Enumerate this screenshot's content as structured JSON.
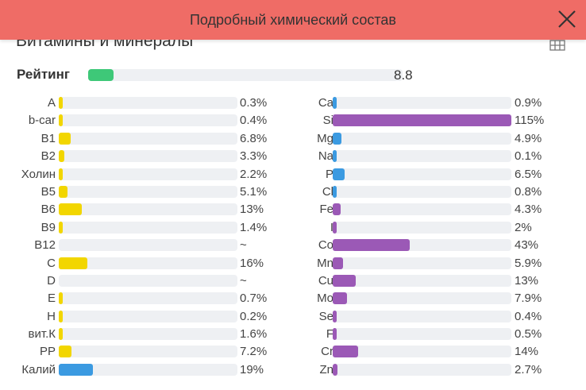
{
  "header": {
    "title": "Подробный химический состав"
  },
  "section": {
    "title": "Витамины и минералы"
  },
  "icons": {
    "close": "close-icon",
    "table_view": "grid-icon"
  },
  "colors": {
    "header": "#ef6c66",
    "rating": "#3ec878",
    "vitamin": "#f2d600",
    "potassium": "#3b9ae1",
    "mineral_blue": "#3b9ae1",
    "mineral_purple": "#9b59b6",
    "track": "#eef0f3"
  },
  "rating": {
    "label": "Рейтинг",
    "value": "8.8",
    "fraction": 0.08
  },
  "vitamins": [
    {
      "label": "A",
      "value": "0.3%",
      "fraction": 0.003,
      "color": "#f2d600"
    },
    {
      "label": "b-car",
      "value": "0.4%",
      "fraction": 0.004,
      "color": "#f2d600"
    },
    {
      "label": "B1",
      "value": "6.8%",
      "fraction": 0.068,
      "color": "#f2d600"
    },
    {
      "label": "B2",
      "value": "3.3%",
      "fraction": 0.033,
      "color": "#f2d600"
    },
    {
      "label": "Холин",
      "value": "2.2%",
      "fraction": 0.022,
      "color": "#f2d600"
    },
    {
      "label": "B5",
      "value": "5.1%",
      "fraction": 0.051,
      "color": "#f2d600"
    },
    {
      "label": "B6",
      "value": "13%",
      "fraction": 0.13,
      "color": "#f2d600"
    },
    {
      "label": "B9",
      "value": "1.4%",
      "fraction": 0.014,
      "color": "#f2d600"
    },
    {
      "label": "B12",
      "value": "~",
      "fraction": 0,
      "color": "#f2d600"
    },
    {
      "label": "C",
      "value": "16%",
      "fraction": 0.16,
      "color": "#f2d600"
    },
    {
      "label": "D",
      "value": "~",
      "fraction": 0,
      "color": "#f2d600"
    },
    {
      "label": "E",
      "value": "0.7%",
      "fraction": 0.007,
      "color": "#f2d600"
    },
    {
      "label": "H",
      "value": "0.2%",
      "fraction": 0.002,
      "color": "#f2d600"
    },
    {
      "label": "вит.К",
      "value": "1.6%",
      "fraction": 0.016,
      "color": "#f2d600"
    },
    {
      "label": "PP",
      "value": "7.2%",
      "fraction": 0.072,
      "color": "#f2d600"
    },
    {
      "label": "Калий",
      "value": "19%",
      "fraction": 0.19,
      "color": "#3b9ae1"
    }
  ],
  "minerals": [
    {
      "label": "Ca",
      "value": "0.9%",
      "fraction": 0.009,
      "color": "#3b9ae1"
    },
    {
      "label": "Si",
      "value": "115%",
      "fraction": 1.0,
      "color": "#9b59b6"
    },
    {
      "label": "Mg",
      "value": "4.9%",
      "fraction": 0.049,
      "color": "#3b9ae1"
    },
    {
      "label": "Na",
      "value": "0.1%",
      "fraction": 0.001,
      "color": "#3b9ae1"
    },
    {
      "label": "P",
      "value": "6.5%",
      "fraction": 0.065,
      "color": "#3b9ae1"
    },
    {
      "label": "Cl",
      "value": "0.8%",
      "fraction": 0.008,
      "color": "#3b9ae1"
    },
    {
      "label": "Fe",
      "value": "4.3%",
      "fraction": 0.043,
      "color": "#9b59b6"
    },
    {
      "label": "I",
      "value": "2%",
      "fraction": 0.02,
      "color": "#9b59b6"
    },
    {
      "label": "Co",
      "value": "43%",
      "fraction": 0.43,
      "color": "#9b59b6"
    },
    {
      "label": "Mn",
      "value": "5.9%",
      "fraction": 0.059,
      "color": "#9b59b6"
    },
    {
      "label": "Cu",
      "value": "13%",
      "fraction": 0.13,
      "color": "#9b59b6"
    },
    {
      "label": "Mo",
      "value": "7.9%",
      "fraction": 0.079,
      "color": "#9b59b6"
    },
    {
      "label": "Se",
      "value": "0.4%",
      "fraction": 0.004,
      "color": "#9b59b6"
    },
    {
      "label": "F",
      "value": "0.5%",
      "fraction": 0.005,
      "color": "#9b59b6"
    },
    {
      "label": "Cr",
      "value": "14%",
      "fraction": 0.14,
      "color": "#9b59b6"
    },
    {
      "label": "Zn",
      "value": "2.7%",
      "fraction": 0.027,
      "color": "#9b59b6"
    }
  ]
}
